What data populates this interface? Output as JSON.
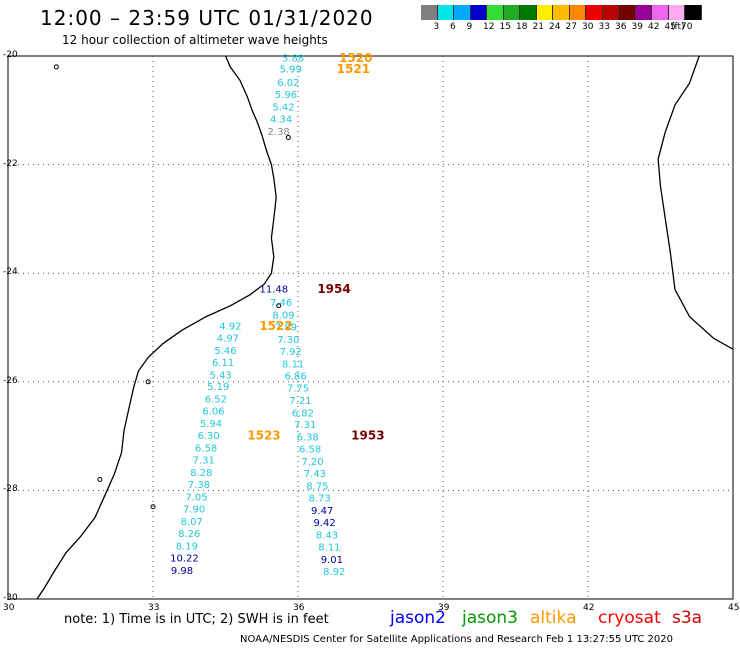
{
  "title": "12:00 – 23:59 UTC 01/31/2020",
  "subtitle": "12 hour collection of altimeter wave heights",
  "legend": {
    "colors": [
      "#808080",
      "#00e5e5",
      "#00aaff",
      "#0000cc",
      "#33dd33",
      "#22aa22",
      "#007700",
      "#ffee00",
      "#ffbb00",
      "#ff8800",
      "#ee0000",
      "#bb0000",
      "#770000",
      "#990099",
      "#ee66ee",
      "#ffaaee",
      "#000000"
    ],
    "labels": [
      "3",
      "6",
      "9",
      "12",
      "15",
      "18",
      "21",
      "24",
      "27",
      "30",
      "33",
      "36",
      "39",
      "42",
      "45",
      "70",
      "(ft)"
    ]
  },
  "axes": {
    "lat_labels": [
      "-20",
      "-22",
      "-24",
      "-26",
      "-28",
      "-30"
    ],
    "lon_labels": [
      "30",
      "33",
      "36",
      "39",
      "42",
      "45"
    ]
  },
  "colors": {
    "teal": "#20c8d8",
    "gray": "#888888",
    "navy": "#000099",
    "orange": "#ff9900",
    "maroon": "#770000",
    "jason2": "#0000ff",
    "jason3": "#009900",
    "altika": "#ff9900",
    "cryosat": "#ff0000",
    "s3a": "#cc0000"
  },
  "chart_data": {
    "type": "scatter",
    "xlim": [
      30,
      45
    ],
    "ylim": [
      -30,
      -20
    ],
    "grid": true,
    "points": [
      {
        "text": "5.88",
        "lon": 35.9,
        "lat": -20.05,
        "color": "teal"
      },
      {
        "text": "5.99",
        "lon": 35.85,
        "lat": -20.25,
        "color": "teal"
      },
      {
        "text": "6.02",
        "lon": 35.8,
        "lat": -20.5,
        "color": "teal"
      },
      {
        "text": "5.96",
        "lon": 35.75,
        "lat": -20.72,
        "color": "teal"
      },
      {
        "text": "5.42",
        "lon": 35.7,
        "lat": -20.95,
        "color": "teal"
      },
      {
        "text": "4.34",
        "lon": 35.65,
        "lat": -21.17,
        "color": "teal"
      },
      {
        "text": "2.38",
        "lon": 35.6,
        "lat": -21.4,
        "color": "gray"
      },
      {
        "text": "11.48",
        "lon": 35.5,
        "lat": -24.3,
        "color": "navy"
      },
      {
        "text": "7.46",
        "lon": 35.65,
        "lat": -24.55,
        "color": "teal"
      },
      {
        "text": "8.09",
        "lon": 35.7,
        "lat": -24.78,
        "color": "teal"
      },
      {
        "text": "7.89",
        "lon": 35.75,
        "lat": -25.0,
        "color": "teal"
      },
      {
        "text": "7.30",
        "lon": 35.8,
        "lat": -25.23,
        "color": "teal"
      },
      {
        "text": "7.92",
        "lon": 35.85,
        "lat": -25.45,
        "color": "teal"
      },
      {
        "text": "8.11",
        "lon": 35.9,
        "lat": -25.68,
        "color": "teal"
      },
      {
        "text": "6.86",
        "lon": 35.95,
        "lat": -25.9,
        "color": "teal"
      },
      {
        "text": "7.75",
        "lon": 36.0,
        "lat": -26.12,
        "color": "teal"
      },
      {
        "text": "7.21",
        "lon": 36.05,
        "lat": -26.35,
        "color": "teal"
      },
      {
        "text": "6.82",
        "lon": 36.1,
        "lat": -26.58,
        "color": "teal"
      },
      {
        "text": "7.31",
        "lon": 36.15,
        "lat": -26.8,
        "color": "teal"
      },
      {
        "text": "6.38",
        "lon": 36.2,
        "lat": -27.03,
        "color": "teal"
      },
      {
        "text": "6.58",
        "lon": 36.25,
        "lat": -27.25,
        "color": "teal"
      },
      {
        "text": "7.20",
        "lon": 36.3,
        "lat": -27.48,
        "color": "teal"
      },
      {
        "text": "7.43",
        "lon": 36.35,
        "lat": -27.7,
        "color": "teal"
      },
      {
        "text": "8.75",
        "lon": 36.4,
        "lat": -27.93,
        "color": "teal"
      },
      {
        "text": "8.73",
        "lon": 36.45,
        "lat": -28.15,
        "color": "teal"
      },
      {
        "text": "9.47",
        "lon": 36.5,
        "lat": -28.38,
        "color": "navy"
      },
      {
        "text": "9.42",
        "lon": 36.55,
        "lat": -28.6,
        "color": "navy"
      },
      {
        "text": "8.43",
        "lon": 36.6,
        "lat": -28.83,
        "color": "teal"
      },
      {
        "text": "8.11",
        "lon": 36.65,
        "lat": -29.05,
        "color": "teal"
      },
      {
        "text": "9.01",
        "lon": 36.7,
        "lat": -29.28,
        "color": "navy"
      },
      {
        "text": "8.92",
        "lon": 36.75,
        "lat": -29.5,
        "color": "teal"
      },
      {
        "text": "4.92",
        "lon": 34.6,
        "lat": -24.98,
        "color": "teal"
      },
      {
        "text": "4.97",
        "lon": 34.55,
        "lat": -25.2,
        "color": "teal"
      },
      {
        "text": "5.46",
        "lon": 34.5,
        "lat": -25.43,
        "color": "teal"
      },
      {
        "text": "6.11",
        "lon": 34.45,
        "lat": -25.65,
        "color": "teal"
      },
      {
        "text": "5.43",
        "lon": 34.4,
        "lat": -25.88,
        "color": "teal"
      },
      {
        "text": "5.19",
        "lon": 34.35,
        "lat": -26.1,
        "color": "teal"
      },
      {
        "text": "6.52",
        "lon": 34.3,
        "lat": -26.33,
        "color": "teal"
      },
      {
        "text": "6.06",
        "lon": 34.25,
        "lat": -26.55,
        "color": "teal"
      },
      {
        "text": "5.94",
        "lon": 34.2,
        "lat": -26.78,
        "color": "teal"
      },
      {
        "text": "6.30",
        "lon": 34.15,
        "lat": -27.0,
        "color": "teal"
      },
      {
        "text": "6.58",
        "lon": 34.1,
        "lat": -27.23,
        "color": "teal"
      },
      {
        "text": "7.31",
        "lon": 34.05,
        "lat": -27.45,
        "color": "teal"
      },
      {
        "text": "8.28",
        "lon": 34.0,
        "lat": -27.68,
        "color": "teal"
      },
      {
        "text": "7.38",
        "lon": 33.95,
        "lat": -27.9,
        "color": "teal"
      },
      {
        "text": "7.05",
        "lon": 33.9,
        "lat": -28.13,
        "color": "teal"
      },
      {
        "text": "7.90",
        "lon": 33.85,
        "lat": -28.35,
        "color": "teal"
      },
      {
        "text": "8.07",
        "lon": 33.8,
        "lat": -28.58,
        "color": "teal"
      },
      {
        "text": "8.26",
        "lon": 33.75,
        "lat": -28.8,
        "color": "teal"
      },
      {
        "text": "8.19",
        "lon": 33.7,
        "lat": -29.03,
        "color": "teal"
      },
      {
        "text": "10.22",
        "lon": 33.65,
        "lat": -29.25,
        "color": "navy"
      },
      {
        "text": "9.98",
        "lon": 33.6,
        "lat": -29.48,
        "color": "navy"
      }
    ],
    "time_labels": [
      {
        "text": "1520",
        "lon": 36.85,
        "lat": -20.05,
        "color": "orange"
      },
      {
        "text": "1521",
        "lon": 36.8,
        "lat": -20.25,
        "color": "orange"
      },
      {
        "text": "1954",
        "lon": 36.4,
        "lat": -24.3,
        "color": "maroon"
      },
      {
        "text": "1522",
        "lon": 35.2,
        "lat": -24.98,
        "color": "orange"
      },
      {
        "text": "1523",
        "lon": 34.95,
        "lat": -27.0,
        "color": "orange"
      },
      {
        "text": "1953",
        "lon": 37.1,
        "lat": -27.0,
        "color": "maroon"
      }
    ]
  },
  "note": "note: 1) Time is in UTC; 2) SWH is in feet",
  "satellites": [
    {
      "name": "jason2",
      "color": "jason2"
    },
    {
      "name": "jason3",
      "color": "jason3"
    },
    {
      "name": "altika",
      "color": "altika"
    },
    {
      "name": "cryosat",
      "color": "cryosat"
    },
    {
      "name": "s3a",
      "color": "s3a"
    }
  ],
  "footer": "NOAA/NESDIS Center for Satellite Applications and Research   Feb  1 13:27:55 UTC 2020"
}
